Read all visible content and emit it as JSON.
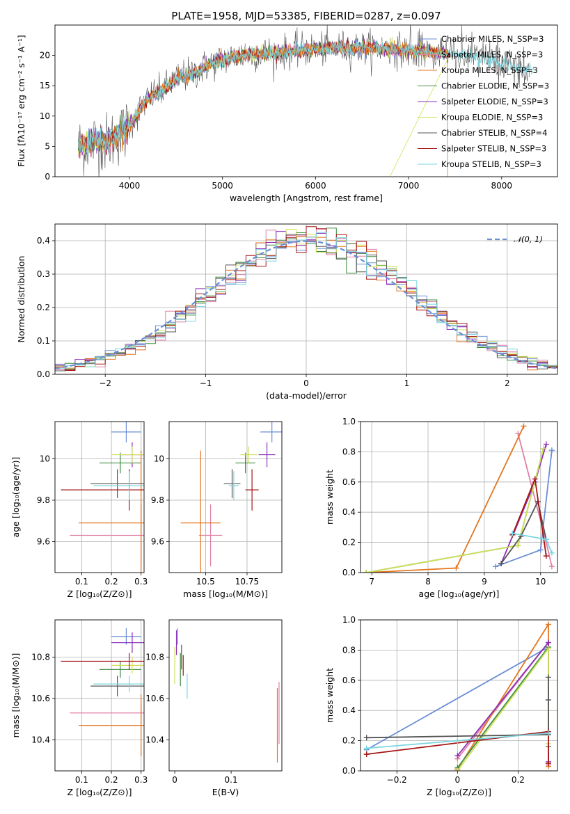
{
  "figure_title": "PLATE=1958, MJD=53385, FIBERID=0287, z=0.097",
  "series_colors": [
    "#6a8ed4",
    "#e07fa7",
    "#e3761f",
    "#3f8c3f",
    "#8b2fb8",
    "#cfe05a",
    "#555555",
    "#a51515",
    "#7ad6df"
  ],
  "chart_data": [
    {
      "type": "line",
      "id": "spectrum",
      "xlabel": "wavelength [Angstrom, rest frame]",
      "ylabel": "Flux [fλ10⁻¹⁷ erg cm⁻² s⁻¹ A⁻¹]",
      "xlim": [
        3200,
        8600
      ],
      "ylim": [
        0,
        25
      ],
      "xticks": [
        4000,
        5000,
        6000,
        7000,
        8000
      ],
      "yticks": [
        0,
        5,
        10,
        15,
        20
      ],
      "legend_position": "right",
      "series": [
        {
          "name": "Chabrier MILES, N_SSP=3"
        },
        {
          "name": "Salpeter MILES, N_SSP=3"
        },
        {
          "name": "Kroupa MILES, N_SSP=3"
        },
        {
          "name": "Chabrier ELODIE, N_SSP=3"
        },
        {
          "name": "Salpeter ELODIE, N_SSP=3"
        },
        {
          "name": "Kroupa ELODIE, N_SSP=3"
        },
        {
          "name": "Chabrier STELIB, N_SSP=4"
        },
        {
          "name": "Salpeter STELIB, N_SSP=3"
        },
        {
          "name": "Kroupa STELIB, N_SSP=3"
        }
      ],
      "continuum": {
        "x": [
          3450,
          3550,
          3650,
          3750,
          3850,
          3950,
          4050,
          4150,
          4250,
          4350,
          4450,
          4550,
          4650,
          4750,
          4850,
          4950,
          5050,
          5200,
          5400,
          5600,
          5800,
          6000,
          6200,
          6400,
          6600,
          6800,
          7000,
          7200,
          7400,
          7600,
          7800,
          8000,
          8200,
          8400
        ],
        "y": [
          5.0,
          5.5,
          6.0,
          5.5,
          6.5,
          7.5,
          9.5,
          12.0,
          13.5,
          14.0,
          15.5,
          16.5,
          16.8,
          17.5,
          18.5,
          19.0,
          19.5,
          20.0,
          20.3,
          20.5,
          20.8,
          21.0,
          21.2,
          21.2,
          21.3,
          21.0,
          20.8,
          20.6,
          20.3,
          20.0,
          19.3,
          18.7,
          18.2,
          17.5
        ]
      }
    },
    {
      "type": "histogram",
      "id": "residuals",
      "xlabel": "(data-model)/error",
      "ylabel": "Normed distribution",
      "xlim": [
        -2.5,
        2.5
      ],
      "ylim": [
        0,
        0.45
      ],
      "xticks": [
        -2,
        -1,
        0,
        1,
        2
      ],
      "yticks": [
        0.0,
        0.1,
        0.2,
        0.3,
        0.4
      ],
      "grid": true,
      "legend_position": "top-right",
      "reference_curve": {
        "name": "𝒩(0, 1)",
        "color": "#6a8ed4"
      },
      "bin_width": 0.1,
      "bin_start": -2.5
    },
    {
      "type": "errorbar",
      "id": "age_vs_Z",
      "xlabel": "Z [log₁₀(Z/Z⊙)]",
      "ylabel": "age  [log₁₀(age/yr)]",
      "xlim": [
        0.01,
        0.31
      ],
      "ylim": [
        9.45,
        10.18
      ],
      "xticks": [
        0.1,
        0.2,
        0.3
      ],
      "yticks": [
        9.6,
        9.8,
        10.0
      ],
      "grid": true,
      "points": [
        {
          "x": 0.25,
          "y": 10.13,
          "xerr": 0.05,
          "yerr": 0.05
        },
        {
          "x": 0.3,
          "y": 9.63,
          "xerr": 0.24,
          "yerr": 0.15
        },
        {
          "x": 0.3,
          "y": 9.69,
          "xerr": 0.21,
          "yerr": 0.35
        },
        {
          "x": 0.23,
          "y": 9.98,
          "xerr": 0.07,
          "yerr": 0.05
        },
        {
          "x": 0.27,
          "y": 10.02,
          "xerr": 0.04,
          "yerr": 0.06
        },
        {
          "x": 0.27,
          "y": 10.02,
          "xerr": 0.07,
          "yerr": 0.04
        },
        {
          "x": 0.22,
          "y": 9.88,
          "xerr": 0.09,
          "yerr": 0.07
        },
        {
          "x": 0.26,
          "y": 9.85,
          "xerr": 0.23,
          "yerr": 0.1
        },
        {
          "x": 0.26,
          "y": 9.87,
          "xerr": 0.12,
          "yerr": 0.07
        }
      ]
    },
    {
      "type": "errorbar",
      "id": "age_vs_mass",
      "xlabel": "mass [log₁₀(M/M⊙)]",
      "ylabel": "",
      "xlim": [
        10.28,
        10.96
      ],
      "ylim": [
        9.45,
        10.18
      ],
      "xticks": [
        10.5,
        10.75
      ],
      "yticks": [
        9.6,
        9.8,
        10.0
      ],
      "grid": true,
      "points": [
        {
          "x": 10.9,
          "y": 10.13,
          "xerr": 0.07,
          "yerr": 0.05
        },
        {
          "x": 10.53,
          "y": 9.63,
          "xerr": 0.07,
          "yerr": 0.15
        },
        {
          "x": 10.47,
          "y": 9.69,
          "xerr": 0.12,
          "yerr": 0.35
        },
        {
          "x": 10.74,
          "y": 9.98,
          "xerr": 0.06,
          "yerr": 0.05
        },
        {
          "x": 10.87,
          "y": 10.02,
          "xerr": 0.05,
          "yerr": 0.06
        },
        {
          "x": 10.76,
          "y": 10.02,
          "xerr": 0.05,
          "yerr": 0.04
        },
        {
          "x": 10.66,
          "y": 9.88,
          "xerr": 0.05,
          "yerr": 0.07
        },
        {
          "x": 10.78,
          "y": 9.85,
          "xerr": 0.04,
          "yerr": 0.1
        },
        {
          "x": 10.67,
          "y": 9.87,
          "xerr": 0.03,
          "yerr": 0.07
        }
      ]
    },
    {
      "type": "line",
      "id": "weight_vs_age",
      "xlabel": "age  [log₁₀(age/yr)]",
      "ylabel": "mass weight",
      "xlim": [
        6.8,
        10.3
      ],
      "ylim": [
        0,
        1
      ],
      "xticks": [
        7,
        8,
        9,
        10
      ],
      "yticks": [
        0.0,
        0.2,
        0.4,
        0.6,
        0.8,
        1.0
      ],
      "grid": true,
      "series": [
        {
          "x": [
            9.2,
            10.0,
            10.2
          ],
          "y": [
            0.04,
            0.15,
            0.81
          ]
        },
        {
          "x": [
            9.6,
            10.1,
            10.2
          ],
          "y": [
            0.92,
            0.2,
            0.04
          ]
        },
        {
          "x": [
            6.9,
            8.5,
            9.7
          ],
          "y": [
            0.0,
            0.03,
            0.97
          ]
        },
        {
          "x": [
            6.9,
            9.6,
            10.05
          ],
          "y": [
            0.0,
            0.18,
            0.82
          ]
        },
        {
          "x": [
            9.3,
            9.9,
            10.1
          ],
          "y": [
            0.06,
            0.6,
            0.85
          ]
        },
        {
          "x": [
            6.9,
            9.6,
            10.05
          ],
          "y": [
            0.0,
            0.18,
            0.82
          ]
        },
        {
          "x": [
            9.3,
            9.65,
            9.95,
            10.1
          ],
          "y": [
            0.06,
            0.24,
            0.47,
            0.22
          ]
        },
        {
          "x": [
            9.5,
            9.9,
            10.1
          ],
          "y": [
            0.25,
            0.62,
            0.11
          ]
        },
        {
          "x": [
            9.5,
            10.1,
            10.2
          ],
          "y": [
            0.26,
            0.22,
            0.13
          ]
        }
      ]
    },
    {
      "type": "errorbar",
      "id": "mass_vs_Z",
      "xlabel": "Z [log₁₀(Z/Z⊙)]",
      "ylabel": "mass [log₁₀(M/M⊙)]",
      "xlim": [
        0.01,
        0.31
      ],
      "ylim": [
        10.25,
        10.98
      ],
      "xticks": [
        0.1,
        0.2,
        0.3
      ],
      "yticks": [
        10.4,
        10.6,
        10.8
      ],
      "grid": true,
      "points": [
        {
          "x": 0.25,
          "y": 10.9,
          "xerr": 0.05,
          "yerr": 0.04
        },
        {
          "x": 0.3,
          "y": 10.53,
          "xerr": 0.24,
          "yerr": 0.05
        },
        {
          "x": 0.3,
          "y": 10.47,
          "xerr": 0.21,
          "yerr": 0.15
        },
        {
          "x": 0.23,
          "y": 10.74,
          "xerr": 0.07,
          "yerr": 0.04
        },
        {
          "x": 0.27,
          "y": 10.87,
          "xerr": 0.07,
          "yerr": 0.05
        },
        {
          "x": 0.27,
          "y": 10.76,
          "xerr": 0.07,
          "yerr": 0.04
        },
        {
          "x": 0.22,
          "y": 10.66,
          "xerr": 0.09,
          "yerr": 0.05
        },
        {
          "x": 0.26,
          "y": 10.78,
          "xerr": 0.23,
          "yerr": 0.04
        },
        {
          "x": 0.26,
          "y": 10.67,
          "xerr": 0.12,
          "yerr": 0.04
        }
      ]
    },
    {
      "type": "errorbar",
      "id": "mass_vs_EBV",
      "xlabel": "E(B-V)",
      "ylabel": "",
      "xlim": [
        -0.01,
        0.19
      ],
      "ylim": [
        10.25,
        10.98
      ],
      "xticks": [
        0.0,
        0.1
      ],
      "yticks": [
        10.4,
        10.6,
        10.8
      ],
      "grid": false,
      "points": [
        {
          "x": 0.005,
          "y": 10.9,
          "xerr": 0,
          "yerr": 0.04
        },
        {
          "x": 0.185,
          "y": 10.53,
          "xerr": 0,
          "yerr": 0.15
        },
        {
          "x": 0.182,
          "y": 10.47,
          "xerr": 0,
          "yerr": 0.18
        },
        {
          "x": 0.01,
          "y": 10.74,
          "xerr": 0,
          "yerr": 0.08
        },
        {
          "x": 0.003,
          "y": 10.87,
          "xerr": 0,
          "yerr": 0.06
        },
        {
          "x": 0.0,
          "y": 10.76,
          "xerr": 0,
          "yerr": 0.09
        },
        {
          "x": 0.012,
          "y": 10.8,
          "xerr": 0,
          "yerr": 0.06
        },
        {
          "x": 0.015,
          "y": 10.76,
          "xerr": 0,
          "yerr": 0.05
        },
        {
          "x": 0.022,
          "y": 10.66,
          "xerr": 0,
          "yerr": 0.06
        }
      ]
    },
    {
      "type": "line",
      "id": "weight_vs_Z",
      "xlabel": "Z [log₁₀(Z/Z⊙)]",
      "ylabel": "mass weight",
      "xlim": [
        -0.32,
        0.33
      ],
      "ylim": [
        0,
        1
      ],
      "xticks": [
        -0.2,
        0.0,
        0.2
      ],
      "yticks": [
        0.0,
        0.2,
        0.4,
        0.6,
        0.8,
        1.0
      ],
      "grid": true,
      "series": [
        {
          "x": [
            -0.3,
            0.3
          ],
          "y": [
            0.14,
            0.82
          ]
        },
        {
          "x": [
            0.0,
            0.3,
            0.3
          ],
          "y": [
            0.08,
            0.85,
            0.04
          ]
        },
        {
          "x": [
            0.0,
            0.3,
            0.3
          ],
          "y": [
            0.01,
            0.97,
            0.03
          ]
        },
        {
          "x": [
            0.0,
            0.3,
            0.3
          ],
          "y": [
            0.02,
            0.82,
            0.16
          ]
        },
        {
          "x": [
            0.0,
            0.3,
            0.3
          ],
          "y": [
            0.1,
            0.85,
            0.06
          ]
        },
        {
          "x": [
            0.0,
            0.3,
            0.3
          ],
          "y": [
            0.0,
            0.81,
            0.18
          ]
        },
        {
          "x": [
            -0.3,
            0.3,
            0.3,
            0.3
          ],
          "y": [
            0.22,
            0.24,
            0.47,
            0.62
          ]
        },
        {
          "x": [
            -0.3,
            0.3,
            0.3
          ],
          "y": [
            0.11,
            0.26,
            0.05
          ]
        },
        {
          "x": [
            -0.3,
            0.0,
            0.3
          ],
          "y": [
            0.15,
            0.2,
            0.25
          ]
        }
      ]
    }
  ]
}
